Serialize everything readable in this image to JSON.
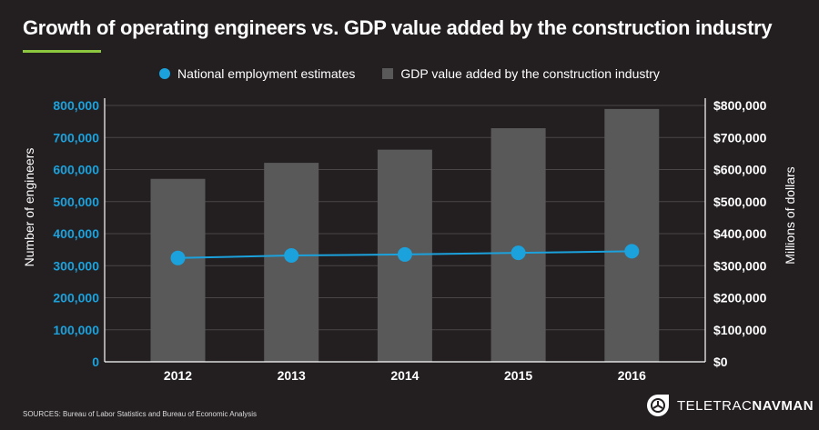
{
  "chart_data": {
    "type": "bar+line",
    "title": "Growth of operating engineers vs. GDP value added by the construction industry",
    "categories": [
      "2012",
      "2013",
      "2014",
      "2015",
      "2016"
    ],
    "series": [
      {
        "name": "National employment estimates",
        "type": "line",
        "axis": "left",
        "color": "#1ba1dc",
        "values": [
          324000,
          332000,
          335000,
          340000,
          345000
        ]
      },
      {
        "name": "GDP value added by the construction industry",
        "type": "bar",
        "axis": "right",
        "color": "#595959",
        "values": [
          571000,
          621000,
          662000,
          729000,
          789000
        ]
      }
    ],
    "ylabel_left": "Number of engineers",
    "ylabel_right": "Millions of dollars",
    "ylim": [
      0,
      800000
    ],
    "yticks_left": [
      "0",
      "100,000",
      "200,000",
      "300,000",
      "400,000",
      "500,000",
      "600,000",
      "700,000",
      "800,000"
    ],
    "yticks_right": [
      "$0",
      "$100,000",
      "$200,000",
      "$300,000",
      "$400,000",
      "$500,000",
      "$600,000",
      "$700,000",
      "$800,000"
    ],
    "grid": true,
    "legend": "top-center"
  },
  "footer": {
    "sources": "SOURCES: Bureau of Labor Statistics and Bureau of Economic Analysis",
    "logo_text_light": "TELETRAC",
    "logo_text_bold": "NAVMAN"
  },
  "colors": {
    "background": "#231f20",
    "accent": "#8dc63f",
    "left_axis_text": "#1ba1dc"
  }
}
